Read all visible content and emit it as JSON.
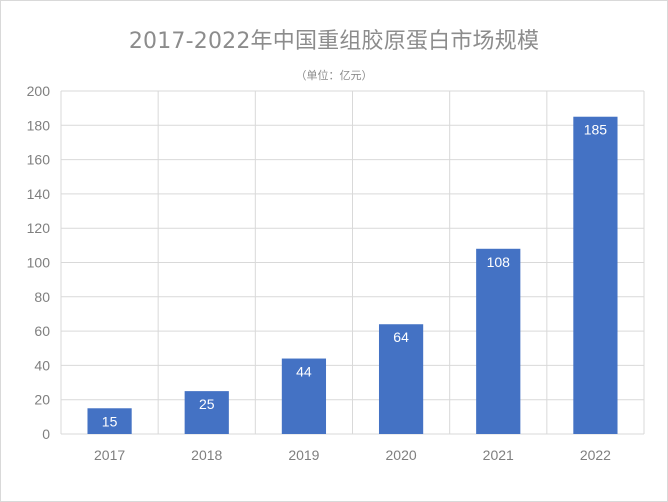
{
  "chart_data": {
    "type": "bar",
    "title": "2017-2022年中国重组胶原蛋白市场规模",
    "subtitle": "（单位：亿元）",
    "categories": [
      "2017",
      "2018",
      "2019",
      "2020",
      "2021",
      "2022"
    ],
    "values": [
      15,
      25,
      44,
      64,
      108,
      185
    ],
    "data_labels": [
      "15",
      "25",
      "44",
      "64",
      "108",
      "185"
    ],
    "y_ticks": [
      "0",
      "20",
      "40",
      "60",
      "80",
      "100",
      "120",
      "140",
      "160",
      "180",
      "200"
    ],
    "ylim": [
      0,
      200
    ],
    "grid": true,
    "xlabel": "",
    "ylabel": "",
    "colors": {
      "bar": "#4472c4",
      "grid": "#d9d9d9",
      "text": "#7f7f7f",
      "title": "#8c8c8c"
    }
  }
}
